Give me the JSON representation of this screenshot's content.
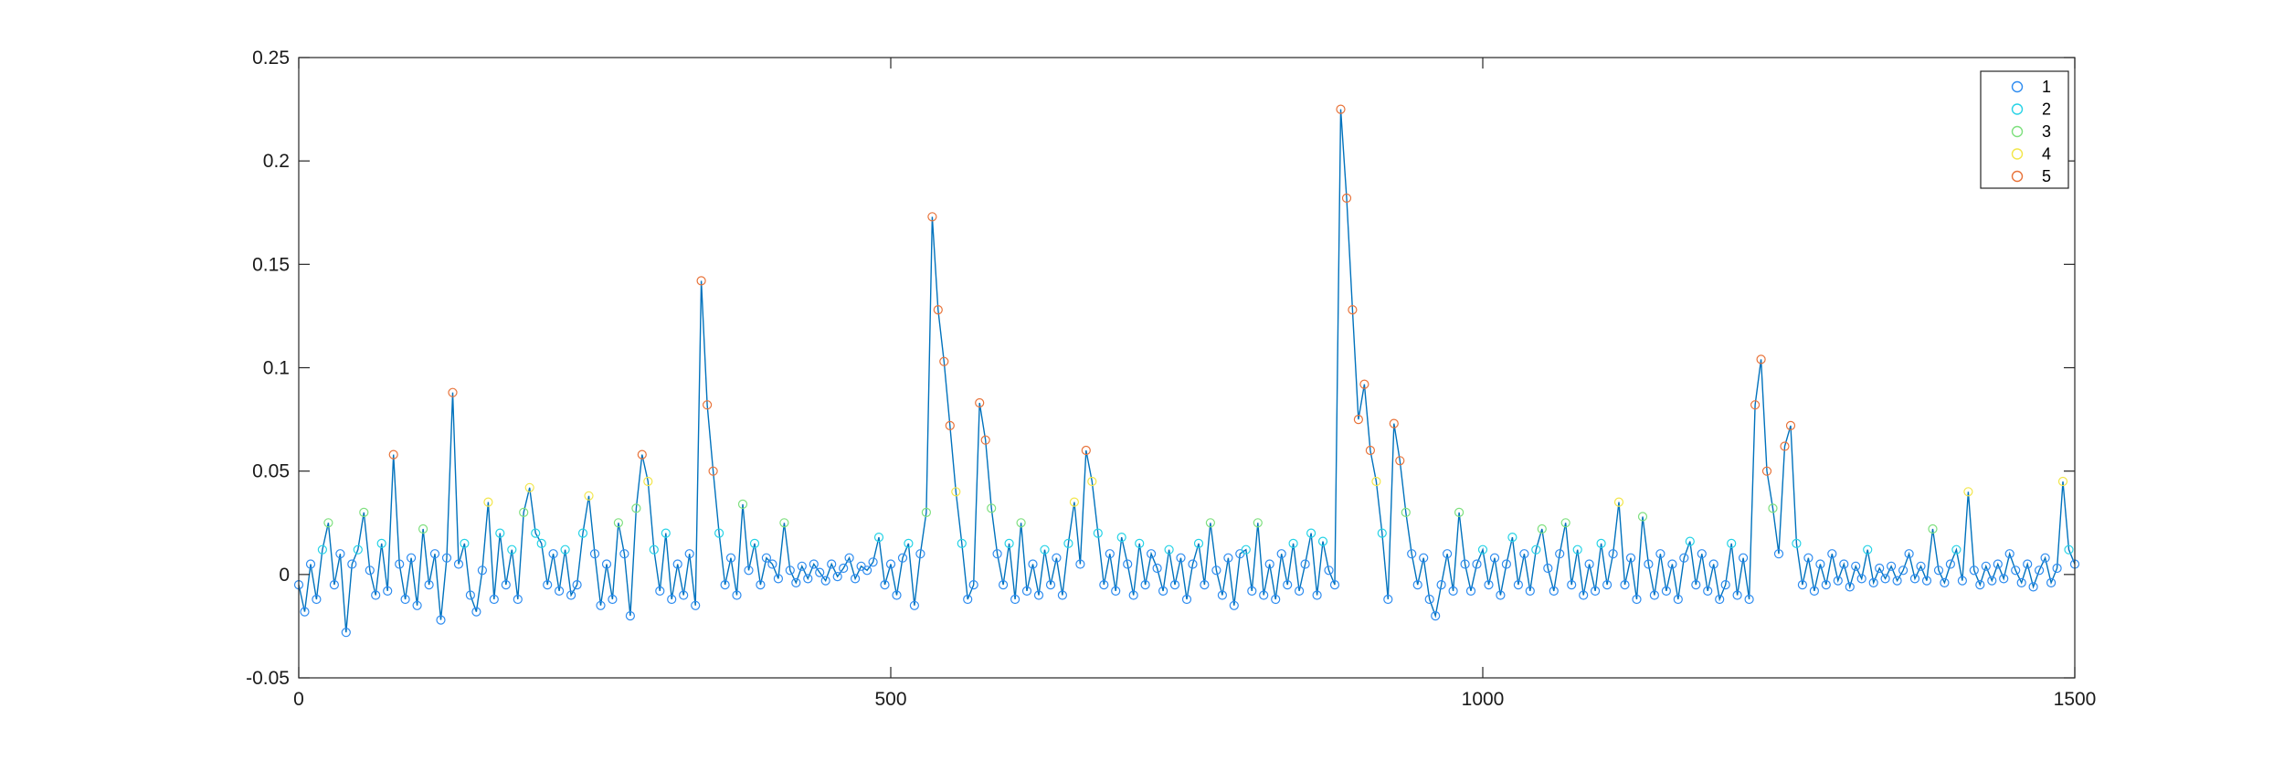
{
  "chart_data": {
    "type": "line",
    "title": "",
    "xlabel": "",
    "ylabel": "",
    "xlim": [
      0,
      1500
    ],
    "ylim": [
      -0.05,
      0.25
    ],
    "x_ticks": [
      0,
      500,
      1000,
      1500
    ],
    "x_tick_labels": [
      "0",
      "500",
      "1000",
      "1500"
    ],
    "y_ticks": [
      -0.05,
      0,
      0.05,
      0.1,
      0.15,
      0.2,
      0.25
    ],
    "y_tick_labels": [
      "-0.05",
      "0",
      "0.05",
      "0.1",
      "0.15",
      "0.2",
      "0.25"
    ],
    "grid": false,
    "line_color": "#0072BD",
    "legend_position": "top-right",
    "legend": [
      {
        "label": "1",
        "color": "#2E8CF0"
      },
      {
        "label": "2",
        "color": "#26D3E6"
      },
      {
        "label": "3",
        "color": "#7EE07E"
      },
      {
        "label": "4",
        "color": "#F2E64A"
      },
      {
        "label": "5",
        "color": "#E8733A"
      }
    ],
    "class_thresholds": [
      0.012,
      0.022,
      0.035,
      0.05
    ],
    "series_points": [
      [
        0,
        -0.005
      ],
      [
        5,
        -0.018
      ],
      [
        10,
        0.005
      ],
      [
        15,
        -0.012
      ],
      [
        20,
        0.012
      ],
      [
        25,
        0.025
      ],
      [
        30,
        -0.005
      ],
      [
        35,
        0.01
      ],
      [
        40,
        -0.028
      ],
      [
        45,
        0.005
      ],
      [
        50,
        0.012
      ],
      [
        55,
        0.03
      ],
      [
        60,
        0.002
      ],
      [
        65,
        -0.01
      ],
      [
        70,
        0.015
      ],
      [
        75,
        -0.008
      ],
      [
        80,
        0.058
      ],
      [
        85,
        0.005
      ],
      [
        90,
        -0.012
      ],
      [
        95,
        0.008
      ],
      [
        100,
        -0.015
      ],
      [
        105,
        0.022
      ],
      [
        110,
        -0.005
      ],
      [
        115,
        0.01
      ],
      [
        120,
        -0.022
      ],
      [
        125,
        0.008
      ],
      [
        130,
        0.088
      ],
      [
        135,
        0.005
      ],
      [
        140,
        0.015
      ],
      [
        145,
        -0.01
      ],
      [
        150,
        -0.018
      ],
      [
        155,
        0.002
      ],
      [
        160,
        0.035
      ],
      [
        165,
        -0.012
      ],
      [
        170,
        0.02
      ],
      [
        175,
        -0.005
      ],
      [
        180,
        0.012
      ],
      [
        185,
        -0.012
      ],
      [
        190,
        0.03
      ],
      [
        195,
        0.042
      ],
      [
        200,
        0.02
      ],
      [
        205,
        0.015
      ],
      [
        210,
        -0.005
      ],
      [
        215,
        0.01
      ],
      [
        220,
        -0.008
      ],
      [
        225,
        0.012
      ],
      [
        230,
        -0.01
      ],
      [
        235,
        -0.005
      ],
      [
        240,
        0.02
      ],
      [
        245,
        0.038
      ],
      [
        250,
        0.01
      ],
      [
        255,
        -0.015
      ],
      [
        260,
        0.005
      ],
      [
        265,
        -0.012
      ],
      [
        270,
        0.025
      ],
      [
        275,
        0.01
      ],
      [
        280,
        -0.02
      ],
      [
        285,
        0.032
      ],
      [
        290,
        0.058
      ],
      [
        295,
        0.045
      ],
      [
        300,
        0.012
      ],
      [
        305,
        -0.008
      ],
      [
        310,
        0.02
      ],
      [
        315,
        -0.012
      ],
      [
        320,
        0.005
      ],
      [
        325,
        -0.01
      ],
      [
        330,
        0.01
      ],
      [
        335,
        -0.015
      ],
      [
        340,
        0.142
      ],
      [
        345,
        0.082
      ],
      [
        350,
        0.05
      ],
      [
        355,
        0.02
      ],
      [
        360,
        -0.005
      ],
      [
        365,
        0.008
      ],
      [
        370,
        -0.01
      ],
      [
        375,
        0.034
      ],
      [
        380,
        0.002
      ],
      [
        385,
        0.015
      ],
      [
        390,
        -0.005
      ],
      [
        395,
        0.008
      ],
      [
        400,
        0.005
      ],
      [
        405,
        -0.002
      ],
      [
        410,
        0.025
      ],
      [
        415,
        0.002
      ],
      [
        420,
        -0.004
      ],
      [
        425,
        0.004
      ],
      [
        430,
        -0.002
      ],
      [
        435,
        0.005
      ],
      [
        440,
        0.001
      ],
      [
        445,
        -0.003
      ],
      [
        450,
        0.005
      ],
      [
        455,
        -0.001
      ],
      [
        460,
        0.003
      ],
      [
        465,
        0.008
      ],
      [
        470,
        -0.002
      ],
      [
        475,
        0.004
      ],
      [
        480,
        0.002
      ],
      [
        485,
        0.006
      ],
      [
        490,
        0.018
      ],
      [
        495,
        -0.005
      ],
      [
        500,
        0.005
      ],
      [
        505,
        -0.01
      ],
      [
        510,
        0.008
      ],
      [
        515,
        0.015
      ],
      [
        520,
        -0.015
      ],
      [
        525,
        0.01
      ],
      [
        530,
        0.03
      ],
      [
        535,
        0.173
      ],
      [
        540,
        0.128
      ],
      [
        545,
        0.103
      ],
      [
        550,
        0.072
      ],
      [
        555,
        0.04
      ],
      [
        560,
        0.015
      ],
      [
        565,
        -0.012
      ],
      [
        570,
        -0.005
      ],
      [
        575,
        0.083
      ],
      [
        580,
        0.065
      ],
      [
        585,
        0.032
      ],
      [
        590,
        0.01
      ],
      [
        595,
        -0.005
      ],
      [
        600,
        0.015
      ],
      [
        605,
        -0.012
      ],
      [
        610,
        0.025
      ],
      [
        615,
        -0.008
      ],
      [
        620,
        0.005
      ],
      [
        625,
        -0.01
      ],
      [
        630,
        0.012
      ],
      [
        635,
        -0.005
      ],
      [
        640,
        0.008
      ],
      [
        645,
        -0.01
      ],
      [
        650,
        0.015
      ],
      [
        655,
        0.035
      ],
      [
        660,
        0.005
      ],
      [
        665,
        0.06
      ],
      [
        670,
        0.045
      ],
      [
        675,
        0.02
      ],
      [
        680,
        -0.005
      ],
      [
        685,
        0.01
      ],
      [
        690,
        -0.008
      ],
      [
        695,
        0.018
      ],
      [
        700,
        0.005
      ],
      [
        705,
        -0.01
      ],
      [
        710,
        0.015
      ],
      [
        715,
        -0.005
      ],
      [
        720,
        0.01
      ],
      [
        725,
        0.003
      ],
      [
        730,
        -0.008
      ],
      [
        735,
        0.012
      ],
      [
        740,
        -0.005
      ],
      [
        745,
        0.008
      ],
      [
        750,
        -0.012
      ],
      [
        755,
        0.005
      ],
      [
        760,
        0.015
      ],
      [
        765,
        -0.005
      ],
      [
        770,
        0.025
      ],
      [
        775,
        0.002
      ],
      [
        780,
        -0.01
      ],
      [
        785,
        0.008
      ],
      [
        790,
        -0.015
      ],
      [
        795,
        0.01
      ],
      [
        800,
        0.012
      ],
      [
        805,
        -0.008
      ],
      [
        810,
        0.025
      ],
      [
        815,
        -0.01
      ],
      [
        820,
        0.005
      ],
      [
        825,
        -0.012
      ],
      [
        830,
        0.01
      ],
      [
        835,
        -0.005
      ],
      [
        840,
        0.015
      ],
      [
        845,
        -0.008
      ],
      [
        850,
        0.005
      ],
      [
        855,
        0.02
      ],
      [
        860,
        -0.01
      ],
      [
        865,
        0.016
      ],
      [
        870,
        0.002
      ],
      [
        875,
        -0.005
      ],
      [
        880,
        0.225
      ],
      [
        885,
        0.182
      ],
      [
        890,
        0.128
      ],
      [
        895,
        0.075
      ],
      [
        900,
        0.092
      ],
      [
        905,
        0.06
      ],
      [
        910,
        0.045
      ],
      [
        915,
        0.02
      ],
      [
        920,
        -0.012
      ],
      [
        925,
        0.073
      ],
      [
        930,
        0.055
      ],
      [
        935,
        0.03
      ],
      [
        940,
        0.01
      ],
      [
        945,
        -0.005
      ],
      [
        950,
        0.008
      ],
      [
        955,
        -0.012
      ],
      [
        960,
        -0.02
      ],
      [
        965,
        -0.005
      ],
      [
        970,
        0.01
      ],
      [
        975,
        -0.008
      ],
      [
        980,
        0.03
      ],
      [
        985,
        0.005
      ],
      [
        990,
        -0.008
      ],
      [
        995,
        0.005
      ],
      [
        1000,
        0.012
      ],
      [
        1005,
        -0.005
      ],
      [
        1010,
        0.008
      ],
      [
        1015,
        -0.01
      ],
      [
        1020,
        0.005
      ],
      [
        1025,
        0.018
      ],
      [
        1030,
        -0.005
      ],
      [
        1035,
        0.01
      ],
      [
        1040,
        -0.008
      ],
      [
        1045,
        0.012
      ],
      [
        1050,
        0.022
      ],
      [
        1055,
        0.003
      ],
      [
        1060,
        -0.008
      ],
      [
        1065,
        0.01
      ],
      [
        1070,
        0.025
      ],
      [
        1075,
        -0.005
      ],
      [
        1080,
        0.012
      ],
      [
        1085,
        -0.01
      ],
      [
        1090,
        0.005
      ],
      [
        1095,
        -0.008
      ],
      [
        1100,
        0.015
      ],
      [
        1105,
        -0.005
      ],
      [
        1110,
        0.01
      ],
      [
        1115,
        0.035
      ],
      [
        1120,
        -0.005
      ],
      [
        1125,
        0.008
      ],
      [
        1130,
        -0.012
      ],
      [
        1135,
        0.028
      ],
      [
        1140,
        0.005
      ],
      [
        1145,
        -0.01
      ],
      [
        1150,
        0.01
      ],
      [
        1155,
        -0.008
      ],
      [
        1160,
        0.005
      ],
      [
        1165,
        -0.012
      ],
      [
        1170,
        0.008
      ],
      [
        1175,
        0.016
      ],
      [
        1180,
        -0.005
      ],
      [
        1185,
        0.01
      ],
      [
        1190,
        -0.008
      ],
      [
        1195,
        0.005
      ],
      [
        1200,
        -0.012
      ],
      [
        1205,
        -0.005
      ],
      [
        1210,
        0.015
      ],
      [
        1215,
        -0.01
      ],
      [
        1220,
        0.008
      ],
      [
        1225,
        -0.012
      ],
      [
        1230,
        0.082
      ],
      [
        1235,
        0.104
      ],
      [
        1240,
        0.05
      ],
      [
        1245,
        0.032
      ],
      [
        1250,
        0.01
      ],
      [
        1255,
        0.062
      ],
      [
        1260,
        0.072
      ],
      [
        1265,
        0.015
      ],
      [
        1270,
        -0.005
      ],
      [
        1275,
        0.008
      ],
      [
        1280,
        -0.008
      ],
      [
        1285,
        0.005
      ],
      [
        1290,
        -0.005
      ],
      [
        1295,
        0.01
      ],
      [
        1300,
        -0.003
      ],
      [
        1305,
        0.005
      ],
      [
        1310,
        -0.006
      ],
      [
        1315,
        0.004
      ],
      [
        1320,
        -0.002
      ],
      [
        1325,
        0.012
      ],
      [
        1330,
        -0.004
      ],
      [
        1335,
        0.003
      ],
      [
        1340,
        -0.002
      ],
      [
        1345,
        0.004
      ],
      [
        1350,
        -0.003
      ],
      [
        1355,
        0.002
      ],
      [
        1360,
        0.01
      ],
      [
        1365,
        -0.002
      ],
      [
        1370,
        0.004
      ],
      [
        1375,
        -0.003
      ],
      [
        1380,
        0.022
      ],
      [
        1385,
        0.002
      ],
      [
        1390,
        -0.004
      ],
      [
        1395,
        0.005
      ],
      [
        1400,
        0.012
      ],
      [
        1405,
        -0.003
      ],
      [
        1410,
        0.04
      ],
      [
        1415,
        0.002
      ],
      [
        1420,
        -0.005
      ],
      [
        1425,
        0.004
      ],
      [
        1430,
        -0.003
      ],
      [
        1435,
        0.005
      ],
      [
        1440,
        -0.002
      ],
      [
        1445,
        0.01
      ],
      [
        1450,
        0.002
      ],
      [
        1455,
        -0.004
      ],
      [
        1460,
        0.005
      ],
      [
        1465,
        -0.006
      ],
      [
        1470,
        0.002
      ],
      [
        1475,
        0.008
      ],
      [
        1480,
        -0.004
      ],
      [
        1485,
        0.003
      ],
      [
        1490,
        0.045
      ],
      [
        1495,
        0.012
      ]
    ],
    "series_points_ext": [
      [
        1500,
        0.005
      ]
    ]
  }
}
